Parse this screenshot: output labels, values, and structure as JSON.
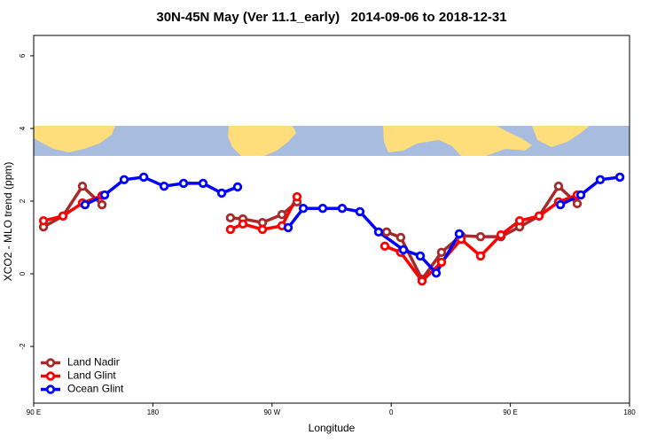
{
  "chart_data": {
    "type": "line",
    "title": "30N-45N May (Ver 11.1_early)   2014-09-06 to 2018-12-31",
    "x_label": "Longitude",
    "y_label": "XCO2 - MLO trend (ppm)",
    "xlim": [
      90,
      540
    ],
    "xticks": [
      {
        "value": 90,
        "label": "90 E"
      },
      180,
      {
        "value": 270,
        "label": "90 W"
      },
      {
        "value": 360,
        "label": "0"
      },
      {
        "value": 450,
        "label": "90 E"
      },
      {
        "value": 540,
        "label": "180"
      }
    ],
    "ylim": [
      -3.56,
      6.56
    ],
    "yticks": [
      -2,
      0,
      2,
      4,
      6
    ],
    "legend": "bottom-left",
    "series": [
      {
        "name": "Land Nadir",
        "color": "#a52a2a",
        "x": [
          97.4,
          112.1,
          126.8,
          141.6,
          null,
          238.6,
          248,
          262.8,
          277.5,
          288.9,
          null,
          356.5,
          367.2,
          383.3,
          398,
          412.8,
          427.5,
          442.9,
          457,
          471.7,
          486.4,
          500.5
        ],
        "values": [
          1.29,
          1.59,
          2.41,
          1.9,
          null,
          1.54,
          1.51,
          1.41,
          1.63,
          1.98,
          null,
          1.15,
          1.0,
          -0.15,
          0.59,
          1.05,
          1.02,
          1.02,
          1.29,
          1.59,
          2.41,
          1.93
        ]
      },
      {
        "name": "Land Glint",
        "color": "#ff0000",
        "x": [
          97.4,
          112.1,
          126.8,
          141.6,
          null,
          238.6,
          248,
          262.8,
          277.5,
          288.9,
          null,
          355.2,
          367.2,
          383.3,
          398,
          412.8,
          427.5,
          442.9,
          457,
          471.7,
          486.4,
          500.5
        ],
        "values": [
          1.46,
          1.59,
          1.95,
          2.15,
          null,
          1.22,
          1.37,
          1.22,
          1.32,
          2.12,
          null,
          0.76,
          0.59,
          -0.2,
          0.32,
          0.95,
          0.49,
          1.07,
          1.46,
          1.59,
          1.98,
          2.17
        ]
      },
      {
        "name": "Ocean Glint",
        "color": "#0000ff",
        "x": [
          128.8,
          143.6,
          158.3,
          173.1,
          188.5,
          203.2,
          217.9,
          232,
          244,
          null,
          282.2,
          293.6,
          308.3,
          323,
          336.4,
          350.5,
          369.2,
          382,
          394,
          411.4,
          null,
          487.8,
          503.2,
          517.9,
          532.7
        ],
        "values": [
          1.9,
          2.17,
          2.59,
          2.66,
          2.41,
          2.49,
          2.49,
          2.22,
          2.39,
          null,
          1.27,
          1.8,
          1.8,
          1.8,
          1.71,
          1.15,
          0.66,
          0.49,
          0.02,
          1.1,
          null,
          1.9,
          2.17,
          2.59,
          2.66
        ]
      }
    ]
  }
}
